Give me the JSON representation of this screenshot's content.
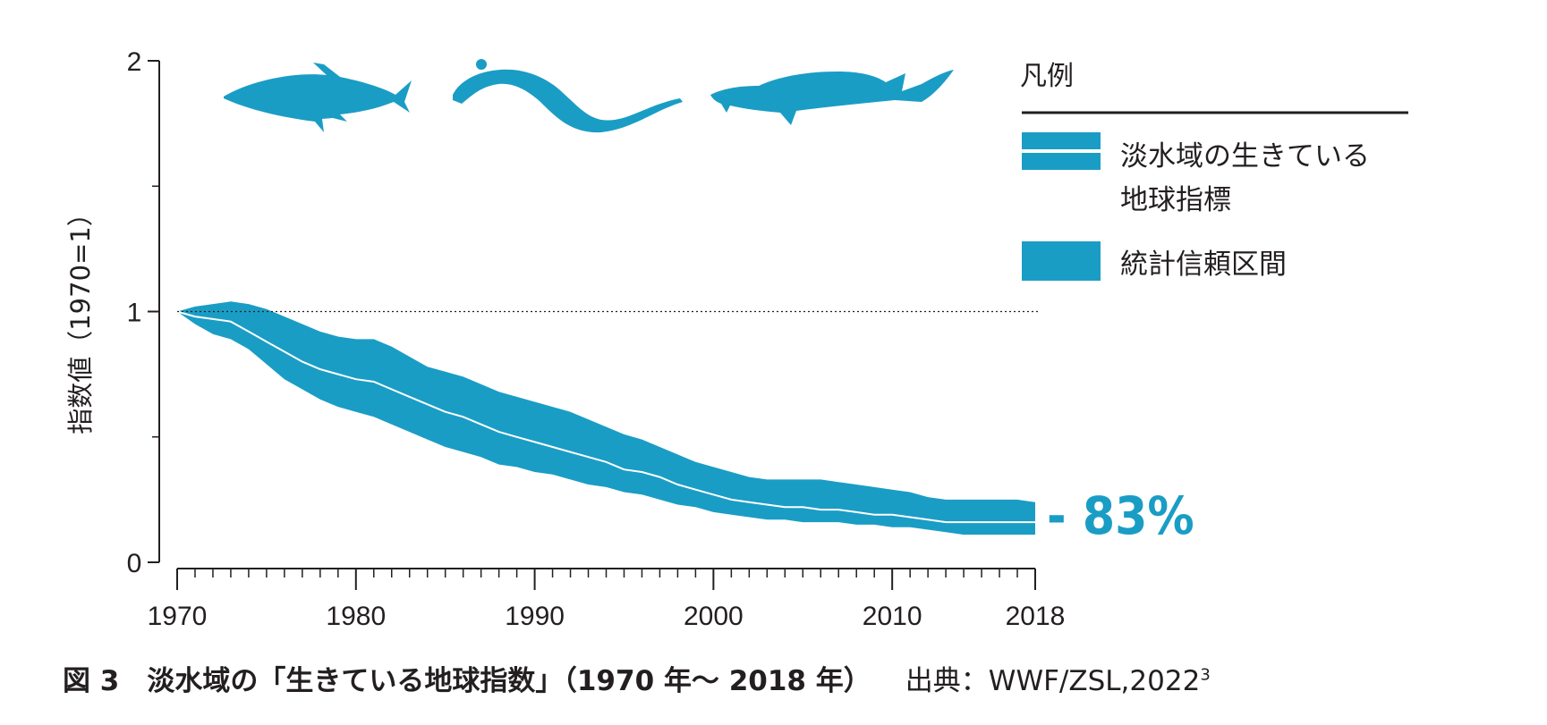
{
  "colors": {
    "band": "#1a9dc5",
    "index_line": "#ffffff",
    "axis": "#231f20",
    "text": "#231f20"
  },
  "icons": [
    "salmon-icon",
    "eel-icon",
    "sturgeon-icon"
  ],
  "chart_data": {
    "type": "area",
    "title": "",
    "xlabel": "",
    "ylabel": "指数値（1970=1）",
    "xlim": [
      1970,
      2018
    ],
    "ylim": [
      0,
      2
    ],
    "x_ticks": [
      1970,
      1980,
      1990,
      2000,
      2010,
      2018
    ],
    "y_ticks": [
      0,
      1,
      2
    ],
    "reference_line": {
      "y": 1,
      "style": "dotted"
    },
    "x": [
      1970,
      1971,
      1972,
      1973,
      1974,
      1975,
      1976,
      1977,
      1978,
      1979,
      1980,
      1981,
      1982,
      1983,
      1984,
      1985,
      1986,
      1987,
      1988,
      1989,
      1990,
      1991,
      1992,
      1993,
      1994,
      1995,
      1996,
      1997,
      1998,
      1999,
      2000,
      2001,
      2002,
      2003,
      2004,
      2005,
      2006,
      2007,
      2008,
      2009,
      2010,
      2011,
      2012,
      2013,
      2014,
      2015,
      2016,
      2017,
      2018
    ],
    "index": [
      1.0,
      0.98,
      0.97,
      0.96,
      0.92,
      0.88,
      0.84,
      0.8,
      0.77,
      0.75,
      0.73,
      0.72,
      0.69,
      0.66,
      0.63,
      0.6,
      0.58,
      0.55,
      0.52,
      0.5,
      0.48,
      0.46,
      0.44,
      0.42,
      0.4,
      0.37,
      0.36,
      0.34,
      0.31,
      0.29,
      0.27,
      0.25,
      0.24,
      0.23,
      0.22,
      0.22,
      0.21,
      0.21,
      0.2,
      0.19,
      0.19,
      0.18,
      0.17,
      0.16,
      0.16,
      0.16,
      0.16,
      0.16,
      0.16
    ],
    "upper": [
      1.0,
      1.02,
      1.03,
      1.04,
      1.03,
      1.01,
      0.98,
      0.95,
      0.92,
      0.9,
      0.89,
      0.89,
      0.86,
      0.82,
      0.78,
      0.76,
      0.74,
      0.71,
      0.68,
      0.66,
      0.64,
      0.62,
      0.6,
      0.57,
      0.54,
      0.51,
      0.49,
      0.46,
      0.43,
      0.4,
      0.38,
      0.36,
      0.34,
      0.33,
      0.33,
      0.33,
      0.33,
      0.32,
      0.31,
      0.3,
      0.29,
      0.28,
      0.26,
      0.25,
      0.25,
      0.25,
      0.25,
      0.25,
      0.24
    ],
    "lower": [
      1.0,
      0.95,
      0.91,
      0.89,
      0.85,
      0.79,
      0.73,
      0.69,
      0.65,
      0.62,
      0.6,
      0.58,
      0.55,
      0.52,
      0.49,
      0.46,
      0.44,
      0.42,
      0.39,
      0.38,
      0.36,
      0.35,
      0.33,
      0.31,
      0.3,
      0.28,
      0.27,
      0.25,
      0.23,
      0.22,
      0.2,
      0.19,
      0.18,
      0.17,
      0.17,
      0.16,
      0.16,
      0.16,
      0.15,
      0.15,
      0.14,
      0.14,
      0.13,
      0.12,
      0.11,
      0.11,
      0.11,
      0.11,
      0.11
    ],
    "annotation": "- 83%",
    "legend": {
      "title": "凡例",
      "placement": "top-right",
      "items": [
        {
          "line1": "淡水域の生きている",
          "line2": "地球指標"
        },
        {
          "line1": "統計信頼区間",
          "line2": ""
        }
      ]
    }
  },
  "caption": {
    "figure": "図 3　淡水域の「生きている地球指数」（1970 年〜 2018 年）",
    "source": "出典：WWF/ZSL,2022",
    "source_sup": "3"
  }
}
